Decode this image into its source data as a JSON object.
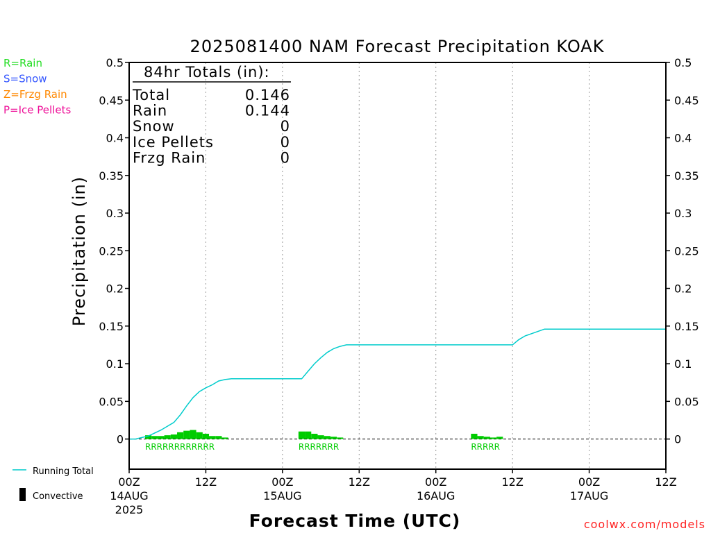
{
  "chart_data": {
    "type": "bar",
    "title": "2025081400 NAM Forecast Precipitation KOAK",
    "ylabel": "Precipitation (in)",
    "xlabel": "Forecast Time (UTC)",
    "ylim": [
      -0.04,
      0.5
    ],
    "xlim_hours": [
      0,
      84
    ],
    "y_ticks": [
      "0",
      "0.05",
      "0.1",
      "0.15",
      "0.2",
      "0.25",
      "0.3",
      "0.35",
      "0.4",
      "0.45",
      "0.5"
    ],
    "y_tick_values": [
      0,
      0.05,
      0.1,
      0.15,
      0.2,
      0.25,
      0.3,
      0.35,
      0.4,
      0.45,
      0.5
    ],
    "x_ticks": [
      {
        "hour": 0,
        "lines": [
          "00Z",
          "14AUG",
          "2025"
        ]
      },
      {
        "hour": 12,
        "lines": [
          "12Z"
        ]
      },
      {
        "hour": 24,
        "lines": [
          "00Z",
          "15AUG"
        ]
      },
      {
        "hour": 36,
        "lines": [
          "12Z"
        ]
      },
      {
        "hour": 48,
        "lines": [
          "00Z",
          "16AUG"
        ]
      },
      {
        "hour": 60,
        "lines": [
          "12Z"
        ]
      },
      {
        "hour": 72,
        "lines": [
          "00Z",
          "17AUG"
        ]
      },
      {
        "hour": 84,
        "lines": [
          "12Z"
        ]
      }
    ],
    "grid": "vertical dotted at 12Z and 00Z",
    "series": [
      {
        "name": "Running Total",
        "color": "#00cccc",
        "hours": [
          0,
          1,
          2,
          3,
          4,
          5,
          6,
          7,
          8,
          9,
          10,
          11,
          12,
          13,
          14,
          15,
          16,
          17,
          18,
          19,
          20,
          21,
          22,
          23,
          24,
          25,
          26,
          27,
          28,
          29,
          30,
          31,
          32,
          33,
          34,
          35,
          36,
          37,
          38,
          39,
          40,
          41,
          42,
          43,
          44,
          45,
          46,
          47,
          48,
          49,
          50,
          51,
          52,
          53,
          54,
          55,
          56,
          57,
          58,
          59,
          60,
          61,
          62,
          63,
          64,
          65,
          66,
          67,
          68,
          69,
          70,
          71,
          72,
          73,
          74,
          75,
          76,
          77,
          78,
          79,
          80,
          81,
          82,
          83,
          84
        ],
        "values": [
          0,
          0,
          0.002,
          0.004,
          0.008,
          0.012,
          0.017,
          0.022,
          0.032,
          0.044,
          0.055,
          0.063,
          0.068,
          0.072,
          0.077,
          0.079,
          0.08,
          0.08,
          0.08,
          0.08,
          0.08,
          0.08,
          0.08,
          0.08,
          0.08,
          0.08,
          0.08,
          0.08,
          0.09,
          0.1,
          0.108,
          0.115,
          0.12,
          0.123,
          0.125,
          0.125,
          0.125,
          0.125,
          0.125,
          0.125,
          0.125,
          0.125,
          0.125,
          0.125,
          0.125,
          0.125,
          0.125,
          0.125,
          0.125,
          0.125,
          0.125,
          0.125,
          0.125,
          0.125,
          0.125,
          0.125,
          0.125,
          0.125,
          0.125,
          0.125,
          0.125,
          0.132,
          0.137,
          0.14,
          0.143,
          0.146,
          0.146,
          0.146,
          0.146,
          0.146,
          0.146,
          0.146,
          0.146,
          0.146,
          0.146,
          0.146,
          0.146,
          0.146,
          0.146,
          0.146,
          0.146,
          0.146,
          0.146,
          0.146,
          0.146
        ]
      },
      {
        "name": "Rain",
        "color": "#00cc00",
        "hours": [
          3,
          4,
          5,
          6,
          7,
          8,
          9,
          10,
          11,
          12,
          13,
          14,
          15,
          27,
          28,
          29,
          30,
          31,
          32,
          33,
          54,
          55,
          56,
          57,
          58
        ],
        "values": [
          0.005,
          0.004,
          0.004,
          0.005,
          0.006,
          0.009,
          0.011,
          0.012,
          0.009,
          0.007,
          0.004,
          0.004,
          0.002,
          0.01,
          0.01,
          0.007,
          0.005,
          0.004,
          0.003,
          0.002,
          0.007,
          0.004,
          0.003,
          0.002,
          0.003
        ]
      }
    ],
    "ptype_labels": [
      {
        "start_hour": 2.5,
        "text": "RRRRRRRRRRRR"
      },
      {
        "start_hour": 26.5,
        "text": "RRRRRRR"
      },
      {
        "start_hour": 53.5,
        "text": "RRRRR"
      }
    ],
    "totals_box": {
      "header": "84hr Totals (in):",
      "rows": [
        {
          "label": "Total",
          "value": "0.146"
        },
        {
          "label": "Rain",
          "value": "0.144"
        },
        {
          "label": "Snow",
          "value": "0"
        },
        {
          "label": "Ice Pellets",
          "value": "0"
        },
        {
          "label": "Frzg Rain",
          "value": "0"
        }
      ]
    },
    "type_legend": [
      {
        "text": "R=Rain",
        "color": "#22dd22"
      },
      {
        "text": "S=Snow",
        "color": "#3355ff"
      },
      {
        "text": "Z=Frzg Rain",
        "color": "#ff8800"
      },
      {
        "text": "P=Ice Pellets",
        "color": "#ee1199"
      }
    ],
    "bottom_legend": [
      {
        "text": "Running Total",
        "color": "#00cccc"
      },
      {
        "text": "Convective",
        "color": "#000000"
      }
    ],
    "credit": "coolwx.com/models"
  }
}
